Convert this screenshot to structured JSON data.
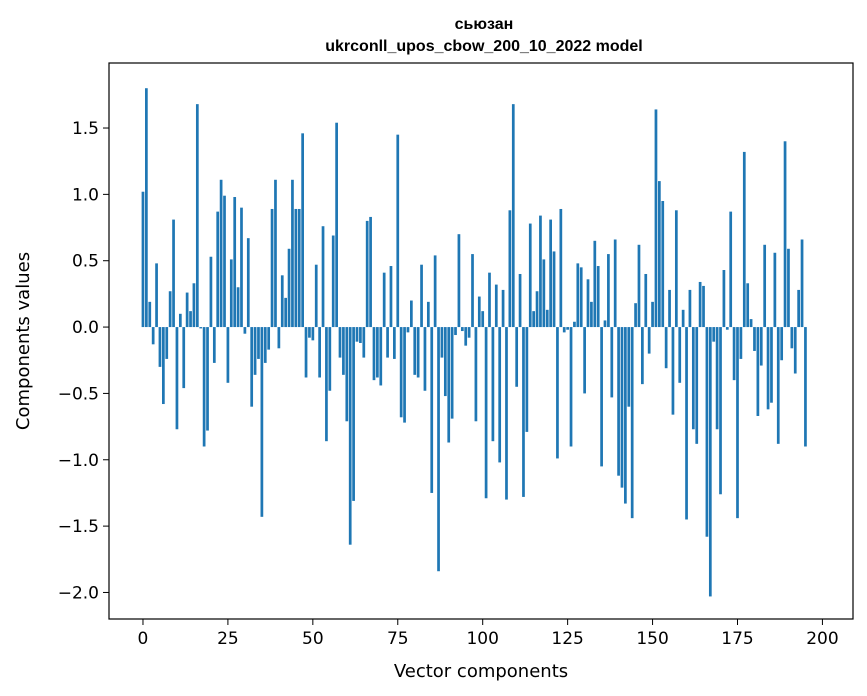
{
  "chart_data": {
    "type": "bar",
    "title_line1": "сьюзан",
    "title_line2": "ukrconll_upos_cbow_200_10_2022 model",
    "xlabel": "Vector components",
    "ylabel": "Components values",
    "xlim": [
      -10,
      209
    ],
    "ylim": [
      -2.2,
      1.99
    ],
    "xticks": [
      0,
      25,
      50,
      75,
      100,
      125,
      150,
      175,
      200
    ],
    "xtick_labels": [
      "0",
      "25",
      "50",
      "75",
      "100",
      "125",
      "150",
      "175",
      "200"
    ],
    "yticks": [
      1.5,
      1.0,
      0.5,
      0.0,
      -0.5,
      -1.0,
      -1.5,
      -2.0
    ],
    "ytick_labels": [
      "1.5",
      "1.0",
      "0.5",
      "0.0",
      "−0.5",
      "−1.0",
      "−1.5",
      "−2.0"
    ],
    "bar_color": "#1f77b4",
    "values": [
      1.02,
      1.8,
      0.19,
      -0.13,
      0.48,
      -0.3,
      -0.58,
      -0.24,
      0.27,
      0.81,
      -0.77,
      0.1,
      -0.46,
      0.26,
      0.12,
      0.33,
      1.68,
      -0.01,
      -0.9,
      -0.78,
      0.53,
      -0.27,
      0.87,
      1.11,
      0.99,
      -0.42,
      0.51,
      0.98,
      0.3,
      0.9,
      -0.05,
      0.67,
      -0.6,
      -0.36,
      -0.24,
      -1.43,
      -0.27,
      -0.17,
      0.89,
      1.11,
      -0.16,
      0.39,
      0.22,
      0.59,
      1.11,
      0.89,
      0.89,
      1.46,
      -0.38,
      -0.08,
      -0.1,
      0.47,
      -0.38,
      0.76,
      -0.86,
      -0.48,
      0.69,
      1.54,
      -0.23,
      -0.36,
      -0.71,
      -1.64,
      -1.31,
      -0.11,
      -0.12,
      -0.23,
      0.8,
      0.83,
      -0.4,
      -0.38,
      -0.44,
      0.41,
      -0.23,
      0.46,
      -0.24,
      1.45,
      -0.68,
      -0.72,
      -0.04,
      0.2,
      -0.36,
      -0.38,
      0.47,
      -0.48,
      0.19,
      -1.25,
      0.54,
      -1.84,
      -0.23,
      -0.52,
      -0.87,
      -0.69,
      -0.06,
      0.7,
      -0.03,
      -0.14,
      -0.08,
      0.55,
      -0.71,
      0.23,
      0.12,
      -1.29,
      0.41,
      -0.86,
      0.32,
      -1.02,
      0.28,
      -1.3,
      0.88,
      1.68,
      -0.45,
      0.4,
      -1.28,
      -0.79,
      0.78,
      0.12,
      0.27,
      0.84,
      0.51,
      0.13,
      0.81,
      0.57,
      -0.99,
      0.89,
      -0.04,
      -0.02,
      -0.9,
      0.04,
      0.48,
      0.45,
      -0.5,
      0.36,
      0.19,
      0.65,
      0.46,
      -1.05,
      0.05,
      0.55,
      -0.53,
      0.66,
      -1.12,
      -1.21,
      -1.33,
      -0.6,
      -1.44,
      0.18,
      0.62,
      -0.43,
      0.4,
      -0.2,
      0.19,
      1.64,
      1.1,
      0.95,
      -0.31,
      0.28,
      -0.66,
      0.88,
      -0.42,
      0.13,
      -1.45,
      0.28,
      -0.77,
      -0.88,
      0.34,
      0.31,
      -1.58,
      -2.03,
      -0.11,
      -0.77,
      -1.26,
      0.43,
      -0.02,
      0.87,
      -0.4,
      -1.44,
      -0.24,
      1.32,
      0.33,
      0.06,
      -0.18,
      -0.67,
      -0.29,
      0.62,
      -0.62,
      -0.57,
      0.56,
      -0.88,
      -0.25,
      1.4,
      0.59,
      -0.16,
      -0.35,
      0.28,
      0.66,
      -0.9
    ]
  }
}
